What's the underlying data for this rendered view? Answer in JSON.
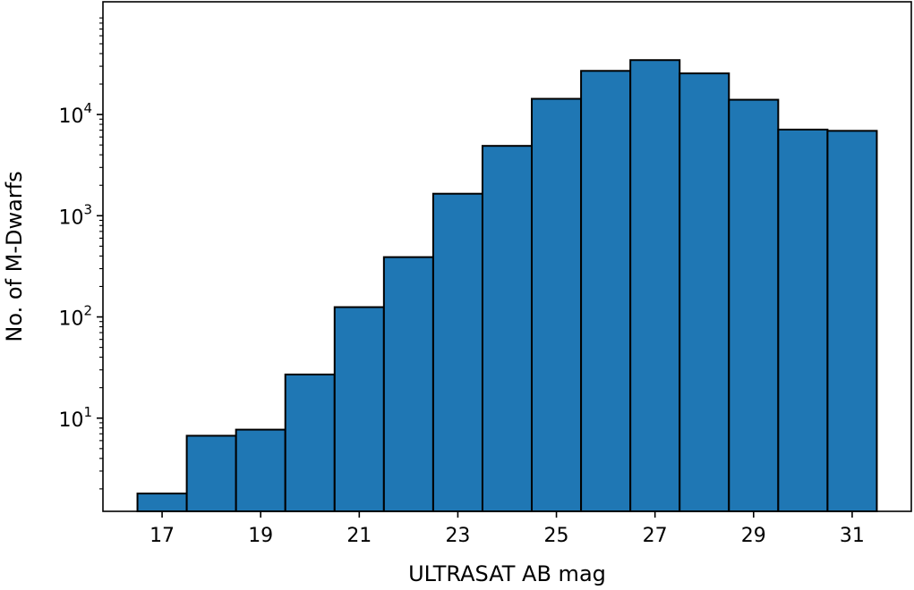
{
  "chart_data": {
    "type": "bar",
    "xlabel": "ULTRASAT AB mag",
    "ylabel": "No. of M-Dwarfs",
    "yscale": "log",
    "xlim": [
      15.8,
      32.2
    ],
    "ylim": [
      1.2,
      130000
    ],
    "bar_color": "#1f77b4",
    "edge_color": "#000000",
    "bin_width": 1,
    "bin_centers": [
      17,
      18,
      19,
      20,
      21,
      22,
      23,
      24,
      25,
      26,
      27,
      28,
      29,
      30,
      31
    ],
    "values": [
      1.8,
      6.7,
      7.7,
      27,
      125,
      390,
      1650,
      4900,
      14300,
      27000,
      34500,
      25500,
      14000,
      7100,
      6900
    ],
    "x_ticks": [
      17,
      19,
      21,
      23,
      25,
      27,
      29,
      31
    ],
    "x_tick_labels": [
      "17",
      "19",
      "21",
      "23",
      "25",
      "27",
      "29",
      "31"
    ],
    "y_ticks": [
      10,
      100,
      1000,
      10000
    ],
    "y_tick_labels": [
      {
        "base": "10",
        "exp": "1"
      },
      {
        "base": "10",
        "exp": "2"
      },
      {
        "base": "10",
        "exp": "3"
      },
      {
        "base": "10",
        "exp": "4"
      }
    ],
    "grid": false,
    "legend": "none"
  }
}
